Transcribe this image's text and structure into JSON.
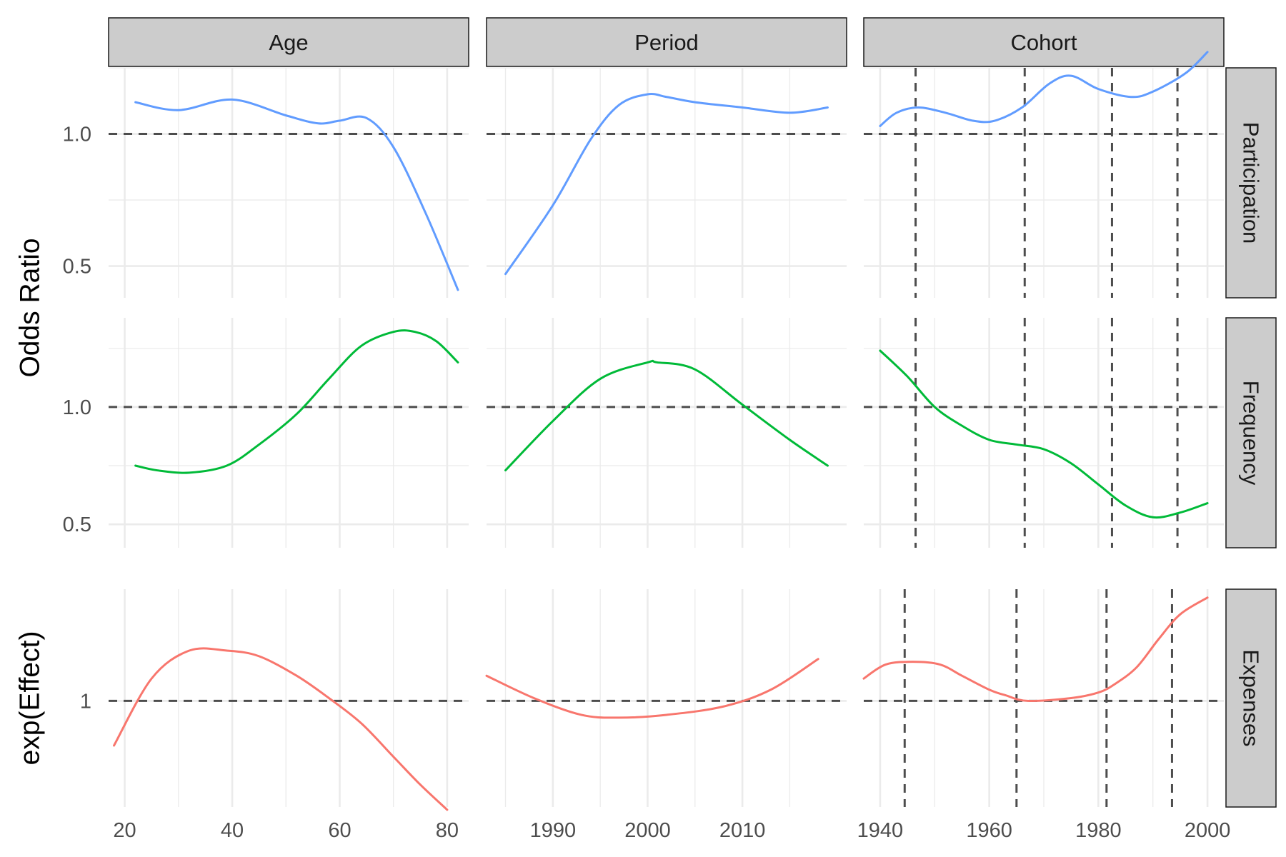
{
  "chart_data": {
    "type": "line",
    "x_columns": [
      {
        "strip": "Age",
        "xlim": [
          17,
          84
        ],
        "breaks": [
          20,
          40,
          60,
          80
        ],
        "minor_breaks": [
          30,
          50,
          70
        ]
      },
      {
        "strip": "Period",
        "xlim": [
          1983,
          2021
        ],
        "breaks": [
          1990,
          2000,
          2010
        ],
        "minor_breaks": [
          1985,
          1995,
          2005,
          2015
        ]
      },
      {
        "strip": "Cohort",
        "xlim": [
          1937,
          2003
        ],
        "breaks": [
          1940,
          1960,
          1980,
          2000
        ],
        "minor_breaks": [
          1950,
          1970,
          1990
        ]
      }
    ],
    "rows": [
      {
        "strip": "Participation",
        "color": "#619CFF",
        "ylim": [
          0.38,
          1.25
        ],
        "y_breaks": [
          0.5,
          1.0
        ],
        "y_break_labels": [
          "0.5",
          "1.0"
        ],
        "y_minor_breaks": [
          0.75,
          1.25
        ],
        "reference_y": 1.0,
        "cohort_vlines": [
          1946.5,
          1966.5,
          1982.5,
          1994.5
        ],
        "series": [
          {
            "x": [
              22,
              30,
              40,
              50,
              56,
              60,
              65,
              70,
              76,
              82
            ],
            "y": [
              1.12,
              1.09,
              1.13,
              1.07,
              1.04,
              1.05,
              1.06,
              0.95,
              0.7,
              0.41
            ]
          },
          {
            "x": [
              1985,
              1990,
              1994,
              1997,
              2000,
              2002,
              2005,
              2010,
              2015,
              2019
            ],
            "y": [
              0.47,
              0.73,
              0.98,
              1.11,
              1.15,
              1.14,
              1.12,
              1.1,
              1.08,
              1.1
            ]
          },
          {
            "x": [
              1940,
              1943,
              1947,
              1952,
              1957,
              1961,
              1966,
              1971,
              1975,
              1980,
              1986,
              1990,
              1996,
              2000
            ],
            "y": [
              1.03,
              1.08,
              1.1,
              1.08,
              1.05,
              1.05,
              1.1,
              1.19,
              1.22,
              1.17,
              1.14,
              1.16,
              1.23,
              1.31
            ]
          }
        ]
      },
      {
        "strip": "Frequency",
        "color": "#00BA38",
        "ylim": [
          0.4,
          1.38
        ],
        "y_breaks": [
          0.5,
          1.0
        ],
        "y_break_labels": [
          "0.5",
          "1.0"
        ],
        "y_minor_breaks": [
          0.75,
          1.25
        ],
        "reference_y": 1.0,
        "cohort_vlines": [
          1946.5,
          1966.5,
          1982.5,
          1994.5
        ],
        "series": [
          {
            "x": [
              22,
              26,
              32,
              39,
              45,
              52,
              58,
              64,
              70,
              74,
              78,
              82
            ],
            "y": [
              0.75,
              0.73,
              0.72,
              0.75,
              0.84,
              0.97,
              1.12,
              1.26,
              1.32,
              1.32,
              1.28,
              1.19
            ]
          },
          {
            "x": [
              1985,
              1990,
              1995,
              2000,
              2001,
              2005,
              2010,
              2015,
              2019
            ],
            "y": [
              0.73,
              0.94,
              1.12,
              1.19,
              1.19,
              1.16,
              1.01,
              0.86,
              0.75
            ]
          },
          {
            "x": [
              1940,
              1945,
              1950,
              1955,
              1960,
              1965,
              1970,
              1975,
              1980,
              1985,
              1990,
              1995,
              2000
            ],
            "y": [
              1.24,
              1.13,
              1.0,
              0.92,
              0.86,
              0.84,
              0.82,
              0.76,
              0.67,
              0.58,
              0.53,
              0.55,
              0.59
            ]
          }
        ]
      },
      {
        "strip": "Expenses",
        "color": "#F8766D",
        "ylim": [
          0.62,
          1.4
        ],
        "y_breaks": [
          1
        ],
        "y_break_labels": [
          "1"
        ],
        "y_minor_breaks": [],
        "reference_y": 1.0,
        "cohort_vlines": [
          1944.5,
          1965,
          1981.5,
          1993.5
        ],
        "series": [
          {
            "x": [
              18,
              25,
              32,
              39,
              45,
              52,
              58,
              64,
              70,
              75,
              80
            ],
            "y": [
              0.84,
              1.08,
              1.18,
              1.18,
              1.16,
              1.09,
              1.01,
              0.92,
              0.8,
              0.7,
              0.61
            ]
          },
          {
            "x": [
              1983,
              1988,
              1993,
              1997,
              2002,
              2008,
              2013,
              2018
            ],
            "y": [
              1.09,
              1.01,
              0.95,
              0.94,
              0.95,
              0.98,
              1.04,
              1.15
            ]
          },
          {
            "x": [
              1937,
              1941,
              1946,
              1951,
              1955,
              1960,
              1963,
              1967,
              1975,
              1980,
              1983,
              1987,
              1991,
              1995,
              2000
            ],
            "y": [
              1.08,
              1.13,
              1.14,
              1.13,
              1.09,
              1.04,
              1.02,
              1.0,
              1.01,
              1.03,
              1.06,
              1.12,
              1.22,
              1.31,
              1.37
            ]
          }
        ]
      }
    ],
    "y_axis_titles": [
      {
        "label": "Odds Ratio",
        "rows": [
          "Participation",
          "Frequency"
        ]
      },
      {
        "label": "exp(Effect)",
        "rows": [
          "Expenses"
        ]
      }
    ],
    "grid": true,
    "legend": "none"
  }
}
